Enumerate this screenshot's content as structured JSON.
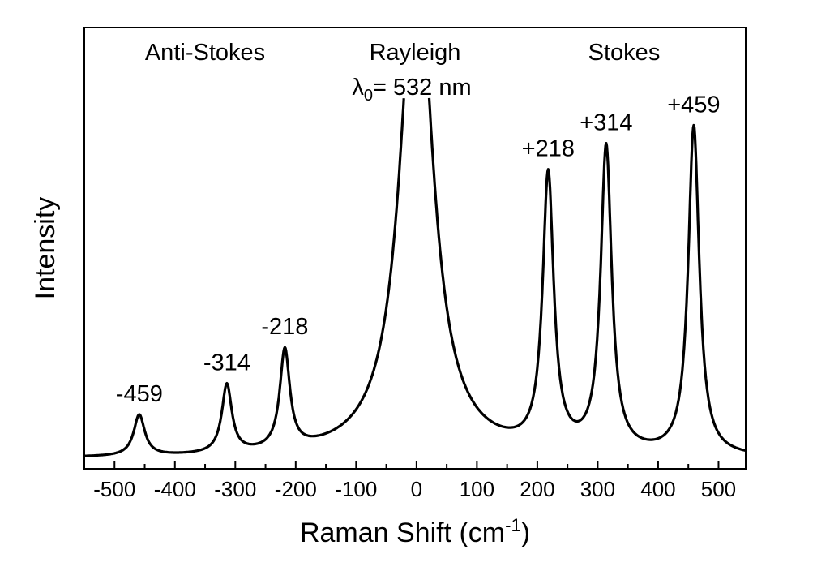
{
  "chart_data": {
    "type": "line",
    "title": "",
    "xlabel": "Raman Shift (cm",
    "xlabel_superscript": "-1",
    "xlabel_suffix": ")",
    "ylabel": "Intensity",
    "xlim": [
      -550,
      545
    ],
    "ylim": [
      0,
      100
    ],
    "x_ticks": [
      -500,
      -400,
      -300,
      -200,
      -100,
      0,
      100,
      200,
      300,
      400,
      500
    ],
    "y_ticks_shown": false,
    "grid": false,
    "legend": "none",
    "line_color": "#000000",
    "series": [
      {
        "baseline": 0.6,
        "peaks": [
          {
            "center": -459,
            "height": 12,
            "width": 11
          },
          {
            "center": -314,
            "height": 20,
            "width": 10
          },
          {
            "center": -218,
            "height": 29,
            "width": 10
          },
          {
            "center": 0,
            "height": 150,
            "width": 32,
            "clipped_above": 100
          },
          {
            "center": 218,
            "height": 80,
            "width": 11
          },
          {
            "center": 314,
            "height": 89,
            "width": 11
          },
          {
            "center": 459,
            "height": 96,
            "width": 11
          }
        ]
      }
    ],
    "region_labels": {
      "anti_stokes": "Anti-Stokes",
      "rayleigh": "Rayleigh",
      "rayleigh_wavelength_symbol": "λ",
      "rayleigh_wavelength_subscript": "0",
      "rayleigh_wavelength_value": "= 532 nm",
      "stokes": "Stokes"
    },
    "peak_labels": [
      {
        "x": -459,
        "text": "-459"
      },
      {
        "x": -314,
        "text": "-314"
      },
      {
        "x": -218,
        "text": "-218"
      },
      {
        "x": 218,
        "text": "+218"
      },
      {
        "x": 314,
        "text": "+314"
      },
      {
        "x": 459,
        "text": "+459"
      }
    ]
  }
}
